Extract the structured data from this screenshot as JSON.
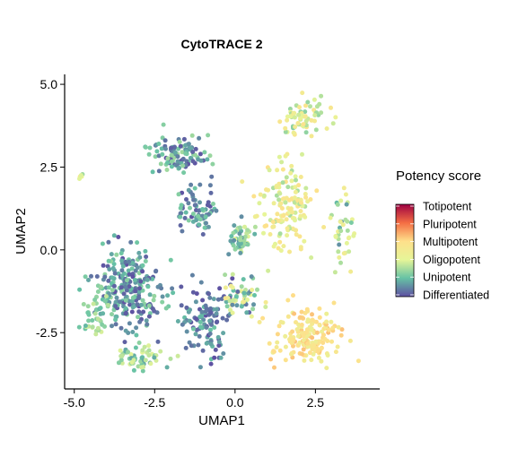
{
  "chart_data": {
    "type": "scatter",
    "title": "CytoTRACE 2",
    "xlabel": "UMAP1",
    "ylabel": "UMAP2",
    "xlim": [
      -5.3,
      4.5
    ],
    "ylim": [
      -4.2,
      5.3
    ],
    "xticks": [
      -5.0,
      -2.5,
      0.0,
      2.5
    ],
    "xtick_labels": [
      "-5.0",
      "-2.5",
      "0.0",
      "2.5"
    ],
    "yticks": [
      -2.5,
      0.0,
      2.5,
      5.0
    ],
    "ytick_labels": [
      "-2.5",
      "0.0",
      "2.5",
      "5.0"
    ],
    "grid": false,
    "legend": {
      "title": "Potency score",
      "placement": "right",
      "labels": [
        "Totipotent",
        "Pluripotent",
        "Multipotent",
        "Oligopotent",
        "Unipotent",
        "Differentiated"
      ],
      "colors": [
        "#9E0142",
        "#F46D43",
        "#FEE08B",
        "#E6F598",
        "#66C2A5",
        "#5E4FA2"
      ]
    },
    "clusters": [
      {
        "center": [
          -3.3,
          -1.2
        ],
        "spread": [
          0.95,
          1.1
        ],
        "count": 260,
        "score_range": [
          0.0,
          0.28
        ]
      },
      {
        "center": [
          -1.8,
          2.9
        ],
        "spread": [
          0.9,
          0.55
        ],
        "count": 110,
        "score_range": [
          0.0,
          0.3
        ]
      },
      {
        "center": [
          -1.2,
          1.2
        ],
        "spread": [
          0.5,
          0.6
        ],
        "count": 70,
        "score_range": [
          0.0,
          0.25
        ]
      },
      {
        "center": [
          -0.9,
          -2.2
        ],
        "spread": [
          0.55,
          1.0
        ],
        "count": 110,
        "score_range": [
          0.0,
          0.22
        ]
      },
      {
        "center": [
          0.2,
          0.4
        ],
        "spread": [
          0.35,
          0.45
        ],
        "count": 45,
        "score_range": [
          0.1,
          0.4
        ]
      },
      {
        "center": [
          -2.9,
          -3.3
        ],
        "spread": [
          0.7,
          0.35
        ],
        "count": 60,
        "score_range": [
          0.15,
          0.4
        ]
      },
      {
        "center": [
          -4.4,
          -2.0
        ],
        "spread": [
          0.35,
          0.7
        ],
        "count": 40,
        "score_range": [
          0.15,
          0.38
        ]
      },
      {
        "center": [
          2.3,
          -2.6
        ],
        "spread": [
          0.9,
          0.8
        ],
        "count": 170,
        "score_range": [
          0.45,
          0.66
        ]
      },
      {
        "center": [
          1.6,
          1.3
        ],
        "spread": [
          0.8,
          1.3
        ],
        "count": 140,
        "score_range": [
          0.3,
          0.6
        ]
      },
      {
        "center": [
          2.1,
          4.0
        ],
        "spread": [
          0.7,
          0.55
        ],
        "count": 70,
        "score_range": [
          0.25,
          0.58
        ]
      },
      {
        "center": [
          3.4,
          0.5
        ],
        "spread": [
          0.35,
          1.0
        ],
        "count": 40,
        "score_range": [
          0.1,
          0.5
        ]
      },
      {
        "center": [
          0.2,
          -1.4
        ],
        "spread": [
          0.6,
          0.6
        ],
        "count": 60,
        "score_range": [
          0.0,
          0.55
        ]
      },
      {
        "center": [
          -4.8,
          2.2
        ],
        "spread": [
          0.08,
          0.1
        ],
        "count": 5,
        "score_range": [
          0.2,
          0.55
        ]
      }
    ]
  }
}
